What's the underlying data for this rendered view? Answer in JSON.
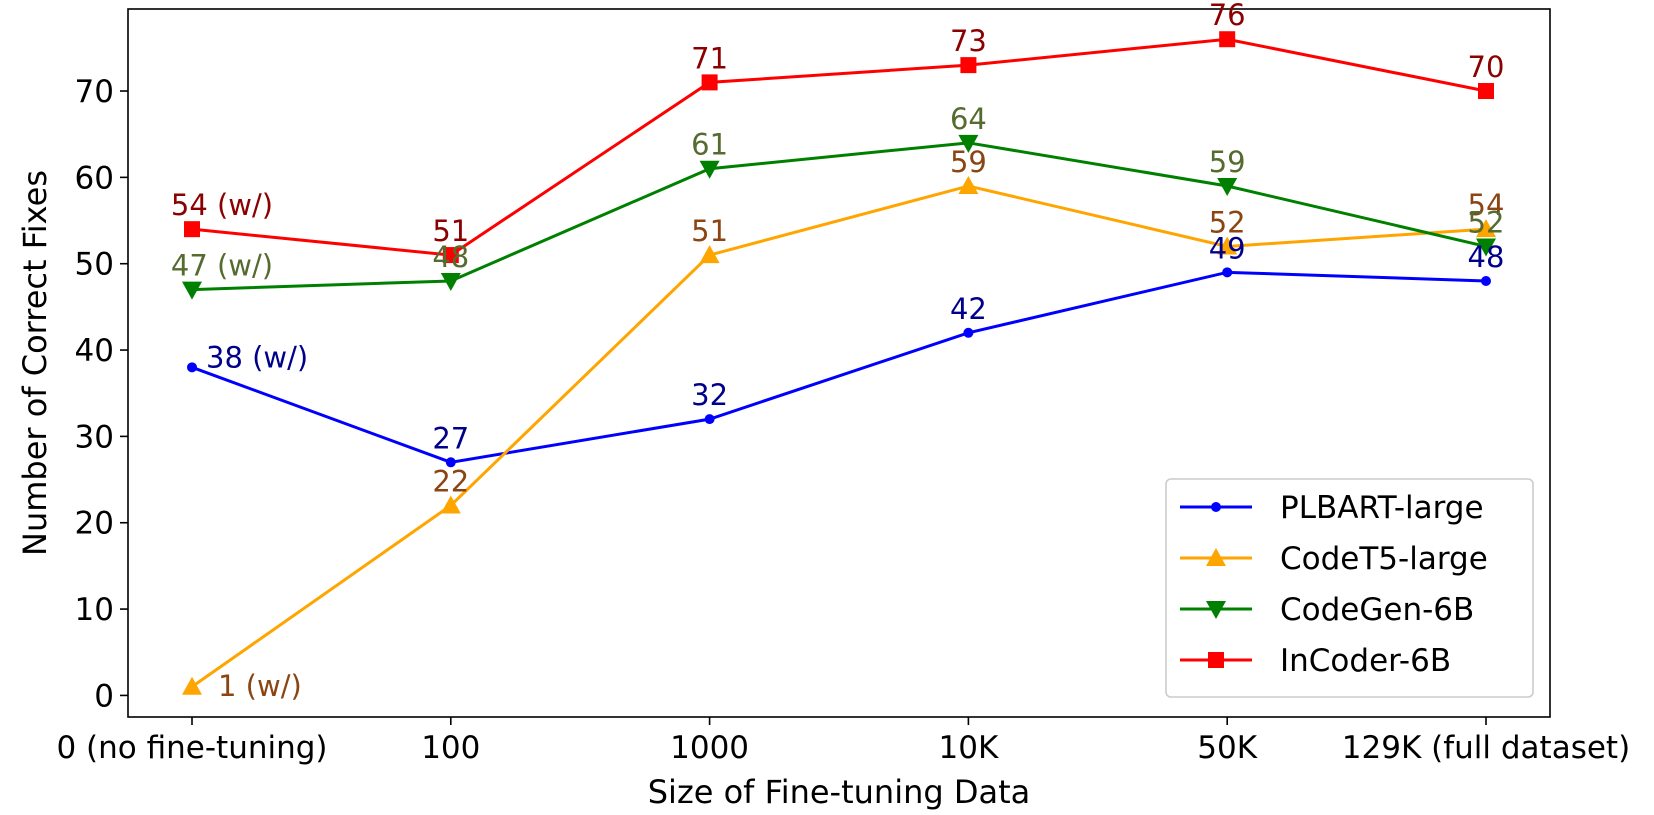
{
  "chart_data": {
    "type": "line",
    "xlabel": "Size of Fine-tuning Data",
    "ylabel": "Number of Correct Fixes",
    "categories": [
      "0 (no fine-tuning)",
      "100",
      "1000",
      "10K",
      "50K",
      "129K (full dataset)"
    ],
    "ylim": [
      -2.5,
      79.5
    ],
    "yticks": [
      0,
      10,
      20,
      30,
      40,
      50,
      60,
      70
    ],
    "grid": false,
    "legend_position": "lower-right",
    "series": [
      {
        "name": "PLBART-large",
        "values": [
          38,
          27,
          32,
          42,
          49,
          48
        ],
        "labels": [
          "38 (w/)",
          "27",
          "32",
          "42",
          "49",
          "48"
        ],
        "color": "#0000ff",
        "label_color": "#00008b",
        "marker": "circle"
      },
      {
        "name": "CodeT5-large",
        "values": [
          1,
          22,
          51,
          59,
          52,
          54
        ],
        "labels": [
          "1 (w/)",
          "22",
          "51",
          "59",
          "52",
          "54"
        ],
        "color": "#ffa500",
        "label_color": "#8b4513",
        "marker": "triangle-up"
      },
      {
        "name": "CodeGen-6B",
        "values": [
          47,
          48,
          61,
          64,
          59,
          52
        ],
        "labels": [
          "47 (w/)",
          "48",
          "61",
          "64",
          "59",
          "52"
        ],
        "color": "#008000",
        "label_color": "#556b2f",
        "marker": "triangle-down"
      },
      {
        "name": "InCoder-6B",
        "values": [
          54,
          51,
          71,
          73,
          76,
          70
        ],
        "labels": [
          "54 (w/)",
          "51",
          "71",
          "73",
          "76",
          "70"
        ],
        "color": "#ff0000",
        "label_color": "#8b0000",
        "marker": "square"
      }
    ]
  }
}
